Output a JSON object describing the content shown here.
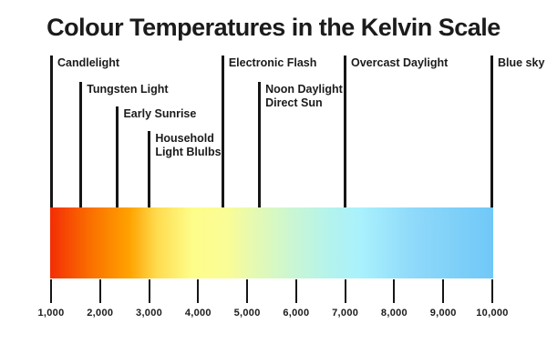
{
  "title": "Colour Temperatures in the Kelvin Scale",
  "colors": {
    "background": "#ffffff",
    "text": "#1b1b1b",
    "line": "#161616"
  },
  "chart_data": {
    "type": "scale",
    "title": "Colour Temperatures in the Kelvin Scale",
    "unit": "Kelvin",
    "axis": {
      "min": 1000,
      "max": 10000,
      "tick_labels": [
        "1,000",
        "2,000",
        "3,000",
        "4,000",
        "5,000",
        "6,000",
        "7,000",
        "8,000",
        "9,000",
        "10,000"
      ],
      "tick_values": [
        1000,
        2000,
        3000,
        4000,
        5000,
        6000,
        7000,
        8000,
        9000,
        10000
      ]
    },
    "markers": [
      {
        "label": "Candlelight",
        "kelvin": 1000,
        "row": 0
      },
      {
        "label": "Tungsten Light",
        "kelvin": 1600,
        "row": 1
      },
      {
        "label": "Early Sunrise",
        "kelvin": 2350,
        "row": 2
      },
      {
        "label": "Household\nLight Blulbs",
        "kelvin": 3000,
        "row": 3
      },
      {
        "label": "Electronic Flash",
        "kelvin": 4500,
        "row": 0
      },
      {
        "label": "Noon Daylight\nDirect Sun",
        "kelvin": 5250,
        "row": 1
      },
      {
        "label": "Overcast Daylight",
        "kelvin": 7000,
        "row": 0
      },
      {
        "label": "Blue sky",
        "kelvin": 10000,
        "row": 0
      }
    ],
    "gradient_stops": [
      {
        "pos": 0.0,
        "color": "#f42d05"
      },
      {
        "pos": 0.09,
        "color": "#fa6f00"
      },
      {
        "pos": 0.18,
        "color": "#ffa300"
      },
      {
        "pos": 0.24,
        "color": "#ffdb4e"
      },
      {
        "pos": 0.32,
        "color": "#fdfd8a"
      },
      {
        "pos": 0.4,
        "color": "#fafc96"
      },
      {
        "pos": 0.47,
        "color": "#e2f9b6"
      },
      {
        "pos": 0.55,
        "color": "#c9f6d4"
      },
      {
        "pos": 0.63,
        "color": "#b4f3ec"
      },
      {
        "pos": 0.7,
        "color": "#a9f1fd"
      },
      {
        "pos": 0.82,
        "color": "#8fd9fa"
      },
      {
        "pos": 1.0,
        "color": "#70c8f7"
      }
    ]
  }
}
